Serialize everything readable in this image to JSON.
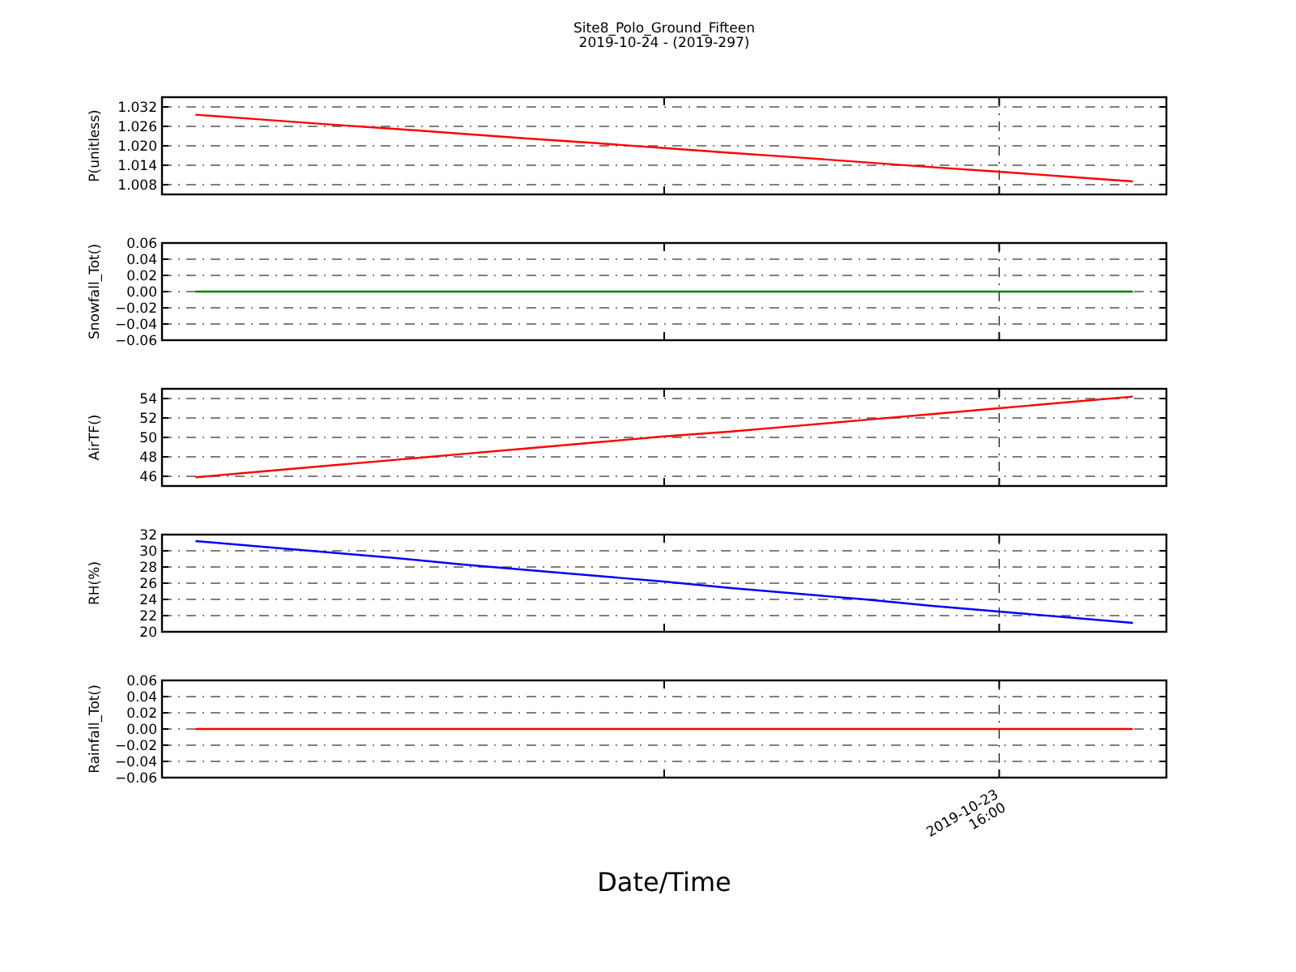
{
  "chart_data": [
    {
      "type": "line",
      "title": "Site8_Polo_Ground_Fifteen",
      "subtitle": "2019-10-24 - (2019-297)",
      "ylabel": "P(unitless)",
      "categories": [
        null,
        null,
        null,
        null,
        null,
        null,
        null,
        null,
        null,
        null,
        null,
        null,
        null,
        null,
        null
      ],
      "series": [
        {
          "color": "#ff0000",
          "values": [
            1.0296,
            1.0281,
            1.0266,
            1.0252,
            1.0237,
            1.0222,
            1.0208,
            1.0193,
            1.0178,
            1.0164,
            1.0149,
            1.0134,
            1.012,
            1.0105,
            1.009
          ]
        }
      ],
      "ylim": [
        1.005,
        1.035
      ],
      "yticks": [
        1.008,
        1.014,
        {
          "value": 1.02,
          "label": "1.020"
        },
        1.026,
        1.032
      ],
      "grid": true,
      "tick_labels": "y"
    },
    {
      "type": "line",
      "ylabel": "Snowfall_Tot()",
      "categories": [
        null,
        null,
        null,
        null,
        null,
        null,
        null,
        null,
        null,
        null,
        null,
        null,
        null,
        null,
        null
      ],
      "series": [
        {
          "color": "#008000",
          "values": [
            0,
            0,
            0,
            0,
            0,
            0,
            0,
            0,
            0,
            0,
            0,
            0,
            0,
            0,
            0
          ]
        }
      ],
      "ylim": [
        -0.06,
        0.06
      ],
      "yticks": [
        0.06,
        0.04,
        0.02,
        {
          "value": 0,
          "label": "0.00"
        },
        {
          "value": -0.02,
          "label": "−0.02"
        },
        {
          "value": -0.04,
          "label": "−0.04"
        },
        {
          "value": -0.06,
          "label": "−0.06"
        }
      ],
      "grid": true,
      "tick_labels": "y"
    },
    {
      "type": "line",
      "ylabel": "AirTF()",
      "categories": [
        null,
        null,
        null,
        null,
        null,
        null,
        null,
        null,
        null,
        null,
        null,
        null,
        null,
        null,
        null
      ],
      "series": [
        {
          "color": "#ff0000",
          "values": [
            45.9,
            46.5,
            47.1,
            47.7,
            48.3,
            48.9,
            49.5,
            50.1,
            50.6,
            51.2,
            51.8,
            52.4,
            53.0,
            53.6,
            54.2
          ]
        }
      ],
      "ylim": [
        45,
        55
      ],
      "yticks": [
        46,
        48,
        50,
        52,
        54
      ],
      "grid": true,
      "tick_labels": "y"
    },
    {
      "type": "line",
      "ylabel": "RH(%)",
      "categories": [
        null,
        null,
        null,
        null,
        null,
        null,
        null,
        null,
        null,
        null,
        null,
        null,
        null,
        null,
        null
      ],
      "series": [
        {
          "color": "#0000ff",
          "values": [
            31.2,
            30.5,
            29.8,
            29.1,
            28.3,
            27.6,
            26.9,
            26.2,
            25.4,
            24.7,
            24.0,
            23.2,
            22.5,
            21.8,
            21.1
          ]
        }
      ],
      "ylim": [
        20,
        32
      ],
      "yticks": [
        20,
        22,
        24,
        26,
        28,
        30,
        32
      ],
      "grid": true,
      "tick_labels": "y"
    },
    {
      "type": "line",
      "ylabel": "Rainfall_Tot()",
      "xlabel": "Date/Time",
      "categories": [
        null,
        null,
        null,
        null,
        null,
        null,
        null,
        null,
        null,
        null,
        null,
        null,
        null,
        null,
        null
      ],
      "series": [
        {
          "color": "#ff0000",
          "values": [
            0,
            0,
            0,
            0,
            0,
            0,
            0,
            0,
            0,
            0,
            0,
            0,
            0,
            0,
            0
          ]
        }
      ],
      "ylim": [
        -0.06,
        0.06
      ],
      "yticks": [
        0.06,
        0.04,
        0.02,
        {
          "value": 0,
          "label": "0.00"
        },
        {
          "value": -0.02,
          "label": "−0.02"
        },
        {
          "value": -0.04,
          "label": "−0.04"
        },
        {
          "value": -0.06,
          "label": "−0.06"
        }
      ],
      "grid": true,
      "tick_labels": "y",
      "annotations": [
        "2019-10-23 16:00"
      ]
    }
  ]
}
